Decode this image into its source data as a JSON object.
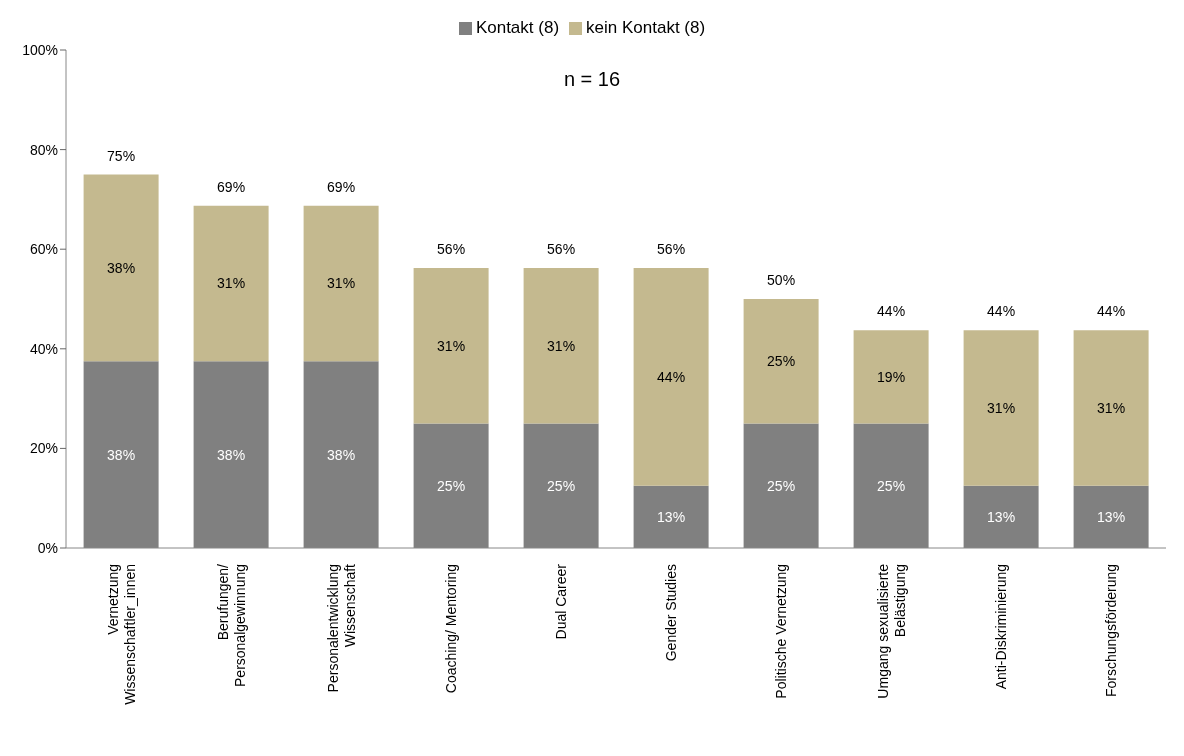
{
  "chart_data": {
    "type": "bar",
    "stacked": true,
    "categories": [
      "Vernetzung Wissenschaftler_innen",
      "Berufungen/ Personalgewinnung",
      "Personalentwicklung Wissenschaft",
      "Coaching/ Mentoring",
      "Dual Career",
      "Gender Studies",
      "Politische Vernetzung",
      "Umgang sexualisierte Belästigung",
      "Anti-Diskriminierung",
      "Forschungsförderung"
    ],
    "series": [
      {
        "name": "Kontakt (8)",
        "color": "#808080",
        "values": [
          37.5,
          37.5,
          37.5,
          25,
          25,
          12.5,
          25,
          25,
          12.5,
          12.5
        ],
        "value_labels": [
          "38%",
          "38%",
          "38%",
          "25%",
          "25%",
          "13%",
          "25%",
          "25%",
          "13%",
          "13%"
        ]
      },
      {
        "name": "kein Kontakt (8)",
        "color": "#c4b98f",
        "values": [
          37.5,
          31.25,
          31.25,
          31.25,
          31.25,
          43.75,
          25,
          18.75,
          31.25,
          31.25
        ],
        "value_labels": [
          "38%",
          "31%",
          "31%",
          "31%",
          "31%",
          "44%",
          "25%",
          "19%",
          "31%",
          "31%"
        ]
      }
    ],
    "totals": [
      "75%",
      "69%",
      "69%",
      "56%",
      "56%",
      "56%",
      "50%",
      "44%",
      "44%",
      "44%"
    ],
    "ylim": [
      0,
      100
    ],
    "yticks": [
      {
        "value": 0,
        "label": "0%"
      },
      {
        "value": 20,
        "label": "20%"
      },
      {
        "value": 40,
        "label": "40%"
      },
      {
        "value": 60,
        "label": "60%"
      },
      {
        "value": 80,
        "label": "80%"
      },
      {
        "value": 100,
        "label": "100%"
      }
    ],
    "grid": false,
    "legend": "top",
    "annotations": [
      "n = 16"
    ]
  }
}
